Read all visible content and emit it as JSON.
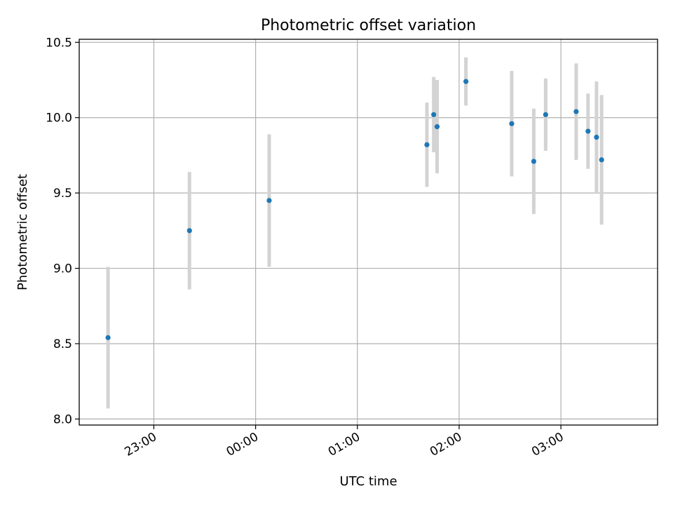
{
  "chart_data": {
    "type": "scatter",
    "title": "Photometric offset variation",
    "xlabel": "UTC time",
    "ylabel": "Photometric offset",
    "x_tick_labels": [
      "23:00",
      "00:00",
      "01:00",
      "02:00",
      "03:00"
    ],
    "y_tick_labels": [
      "8.0",
      "8.5",
      "9.0",
      "9.5",
      "10.0",
      "10.5"
    ],
    "y_ticks": [
      8.0,
      8.5,
      9.0,
      9.5,
      10.0,
      10.5
    ],
    "ylim": [
      7.96,
      10.52
    ],
    "x_ticks": [
      "23:00",
      "00:00",
      "01:00",
      "02:00",
      "03:00"
    ],
    "xlim": [
      "22:16",
      "03:57"
    ],
    "grid": true,
    "colors": {
      "points": "#1f77b4",
      "errorbars": "#d3d3d3",
      "grid": "#b0b0b0"
    },
    "points": [
      {
        "x": "22:33",
        "y": 8.54,
        "err": 0.47
      },
      {
        "x": "23:21",
        "y": 9.25,
        "err": 0.39
      },
      {
        "x": "00:08",
        "y": 9.45,
        "err": 0.44
      },
      {
        "x": "01:41",
        "y": 9.82,
        "err": 0.28
      },
      {
        "x": "01:45",
        "y": 10.02,
        "err": 0.25
      },
      {
        "x": "01:47",
        "y": 9.94,
        "err": 0.31
      },
      {
        "x": "02:04",
        "y": 10.24,
        "err": 0.16
      },
      {
        "x": "02:31",
        "y": 9.96,
        "err": 0.35
      },
      {
        "x": "02:44",
        "y": 9.71,
        "err": 0.35
      },
      {
        "x": "02:51",
        "y": 10.02,
        "err": 0.24
      },
      {
        "x": "03:09",
        "y": 10.04,
        "err": 0.32
      },
      {
        "x": "03:16",
        "y": 9.91,
        "err": 0.25
      },
      {
        "x": "03:21",
        "y": 9.87,
        "err": 0.37
      },
      {
        "x": "03:24",
        "y": 9.72,
        "err": 0.43
      }
    ]
  }
}
